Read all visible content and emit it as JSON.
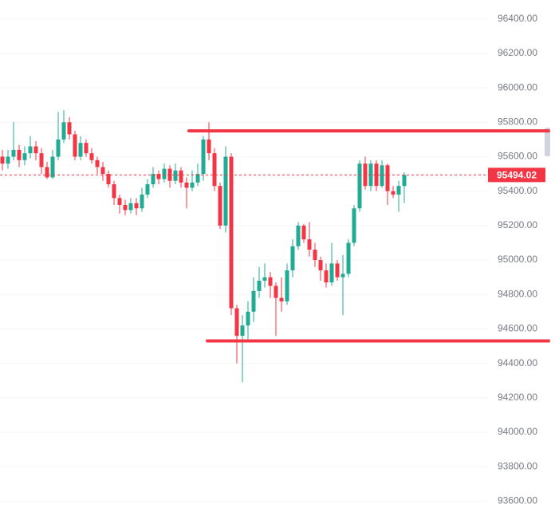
{
  "chart_data": {
    "type": "candlestick",
    "open": [
      95600,
      95560,
      95600,
      95640,
      95580,
      95620,
      95660,
      95620,
      95540,
      95480,
      95600,
      95700,
      95800,
      95730,
      95600,
      95680,
      95620,
      95580,
      95540,
      95500,
      95440,
      95360,
      95320,
      95290,
      95330,
      95300,
      95380,
      95440,
      95500,
      95470,
      95530,
      95460,
      95520,
      95450,
      95420,
      95450,
      95500,
      95700,
      95620,
      95430,
      95200,
      95600,
      94720,
      94560,
      94620,
      94700,
      94820,
      94880,
      94900,
      94850,
      94780,
      94760,
      94940,
      95080,
      95200,
      95120,
      95060,
      95000,
      94940,
      94870,
      94980,
      94900,
      94920,
      95100,
      95300,
      95560,
      95430,
      95560,
      95430,
      95550,
      95400,
      95380,
      95430
    ],
    "high": [
      95640,
      95640,
      95800,
      95670,
      95660,
      95720,
      95690,
      95650,
      95570,
      95640,
      95860,
      95870,
      95830,
      95750,
      95720,
      95700,
      95650,
      95600,
      95570,
      95520,
      95460,
      95380,
      95350,
      95360,
      95360,
      95420,
      95470,
      95540,
      95520,
      95560,
      95550,
      95560,
      95540,
      95480,
      95520,
      95560,
      95720,
      95800,
      95650,
      95450,
      95660,
      95620,
      94740,
      94680,
      94760,
      94900,
      94960,
      94980,
      94930,
      94870,
      94900,
      94980,
      95120,
      95220,
      95210,
      95220,
      95100,
      95020,
      94980,
      95100,
      95000,
      95030,
      95120,
      95320,
      95580,
      95600,
      95580,
      95580,
      95580,
      95560,
      95430,
      95460,
      95510
    ],
    "low": [
      95520,
      95530,
      95580,
      95540,
      95550,
      95590,
      95580,
      95500,
      95470,
      95470,
      95580,
      95680,
      95700,
      95580,
      95580,
      95600,
      95560,
      95500,
      95460,
      95420,
      95320,
      95270,
      95260,
      95270,
      95260,
      95280,
      95360,
      95420,
      95440,
      95450,
      95420,
      95440,
      95420,
      95300,
      95400,
      95430,
      95460,
      95580,
      95400,
      95180,
      95160,
      94680,
      94400,
      94290,
      94540,
      94640,
      94780,
      94840,
      94780,
      94560,
      94700,
      94740,
      94900,
      95060,
      95100,
      95020,
      94960,
      94880,
      94840,
      94850,
      94880,
      94680,
      94900,
      95080,
      95280,
      95410,
      95400,
      95400,
      95420,
      95320,
      95360,
      95280,
      95330
    ],
    "close": [
      95560,
      95600,
      95640,
      95580,
      95620,
      95660,
      95620,
      95540,
      95480,
      95600,
      95700,
      95800,
      95730,
      95600,
      95680,
      95620,
      95580,
      95540,
      95500,
      95440,
      95360,
      95320,
      95290,
      95330,
      95300,
      95380,
      95440,
      95500,
      95470,
      95530,
      95460,
      95520,
      95450,
      95420,
      95450,
      95500,
      95700,
      95620,
      95430,
      95200,
      95600,
      94720,
      94560,
      94620,
      94700,
      94820,
      94880,
      94900,
      94850,
      94780,
      94760,
      94940,
      95080,
      95200,
      95120,
      95060,
      95000,
      94940,
      94870,
      94980,
      94900,
      94920,
      95100,
      95300,
      95560,
      95430,
      95560,
      95430,
      95550,
      95400,
      95380,
      95430,
      95494.02
    ],
    "up_color": "#22ab94",
    "down_color": "#f23645",
    "last_price": 95494.02,
    "levels": [
      95750,
      94530
    ],
    "level_color": "#f23645",
    "ylim": [
      93560,
      96510
    ],
    "yticks": [
      {
        "value": 96400,
        "label": "96400.00"
      },
      {
        "value": 96200,
        "label": "96200.00"
      },
      {
        "value": 96000,
        "label": "96000.00"
      },
      {
        "value": 95800,
        "label": "95800.00"
      },
      {
        "value": 95600,
        "label": "95600.00"
      },
      {
        "value": 95400,
        "label": "95400.00"
      },
      {
        "value": 95200,
        "label": "95200.00"
      },
      {
        "value": 95000,
        "label": "95000.00"
      },
      {
        "value": 94800,
        "label": "94800.00"
      },
      {
        "value": 94600,
        "label": "94600.00"
      },
      {
        "value": 94400,
        "label": "94400.00"
      },
      {
        "value": 94200,
        "label": "94200.00"
      },
      {
        "value": 94000,
        "label": "94000.00"
      },
      {
        "value": 93800,
        "label": "93800.00"
      },
      {
        "value": 93600,
        "label": "93600.00"
      }
    ],
    "grid": true
  }
}
